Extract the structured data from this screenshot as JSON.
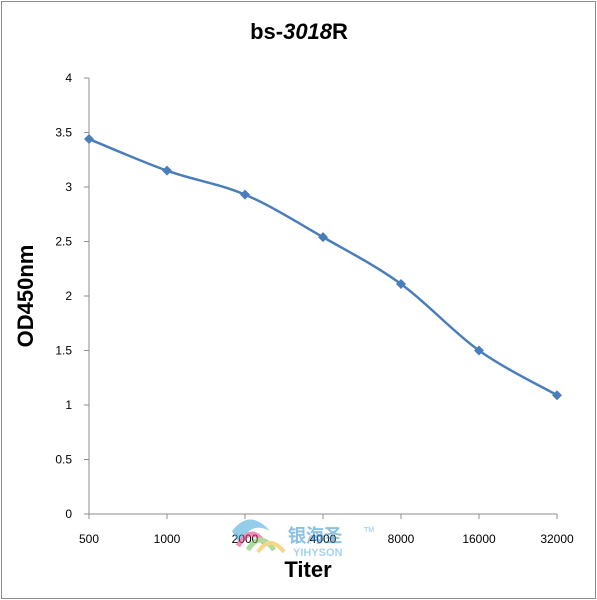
{
  "chart_data": {
    "type": "line",
    "title_prefix": "bs-",
    "title_italic": "3018",
    "title_suffix": "R",
    "xlabel": "Titer",
    "ylabel": "OD450nm",
    "categories": [
      "500",
      "1000",
      "2000",
      "4000",
      "8000",
      "16000",
      "32000"
    ],
    "series": [
      {
        "values": [
          3.44,
          3.15,
          2.93,
          2.54,
          2.11,
          1.5,
          1.09
        ]
      }
    ],
    "ylim": [
      0,
      4
    ],
    "yticks": [
      "0",
      "0.5",
      "1",
      "1.5",
      "2",
      "2.5",
      "3",
      "3.5",
      "4"
    ],
    "grid": false,
    "legend": "none",
    "line_color": "#4a7ebb"
  },
  "watermark": {
    "brand_cn": "银海圣",
    "brand_tm": "TM",
    "brand_en": "YIHYSON"
  }
}
